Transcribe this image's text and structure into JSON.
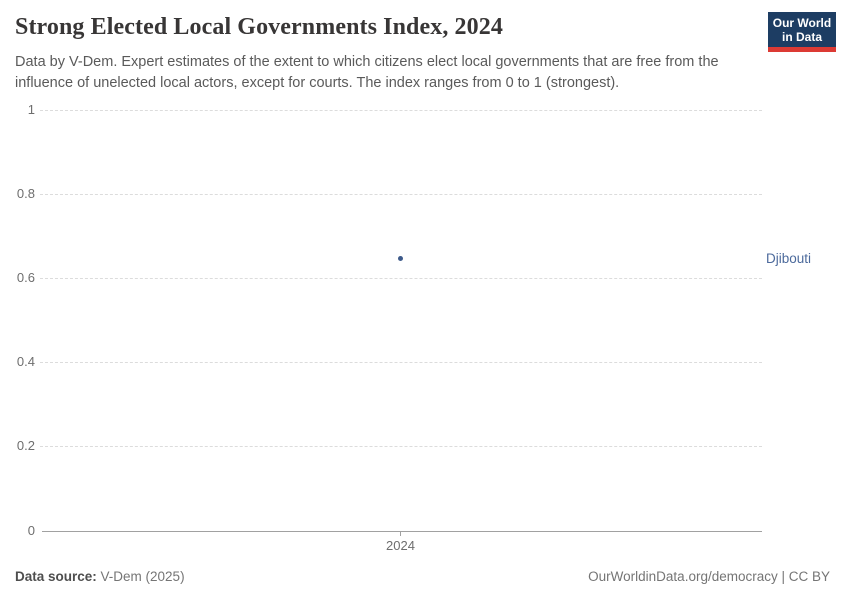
{
  "header": {
    "title": "Strong Elected Local Governments Index, 2024",
    "subtitle": "Data by V-Dem. Expert estimates of the extent to which citizens elect local governments that are free from the influence of unelected local actors, except for courts. The index ranges from 0 to 1 (strongest).",
    "logo": {
      "line1": "Our World",
      "line2": "in Data",
      "bg_color": "#1d3d63",
      "accent_color": "#dc3a34"
    }
  },
  "chart_data": {
    "type": "scatter",
    "title": "Strong Elected Local Governments Index, 2024",
    "x": [
      2024
    ],
    "series": [
      {
        "name": "Djibouti",
        "values": [
          0.65
        ],
        "color": "#4c6a9c"
      }
    ],
    "xlabel": "",
    "ylabel": "",
    "ylim": [
      0,
      1
    ],
    "yticks": [
      0,
      0.2,
      0.4,
      0.6,
      0.8,
      1
    ],
    "xticks": [
      2024
    ],
    "grid": "horizontal dashed gridlines, solid baseline at 0",
    "legend_position": "entity label at right edge of plot"
  },
  "axes": {
    "y_tick_labels_top_to_bottom": [
      "1",
      "0.8",
      "0.6",
      "0.4",
      "0.2",
      "0"
    ],
    "x_tick_label": "2024"
  },
  "entity": {
    "label": "Djibouti"
  },
  "footer": {
    "source_label": "Data source:",
    "source_value": " V-Dem (2025)",
    "right_text": "OurWorldinData.org/democracy | CC BY"
  }
}
